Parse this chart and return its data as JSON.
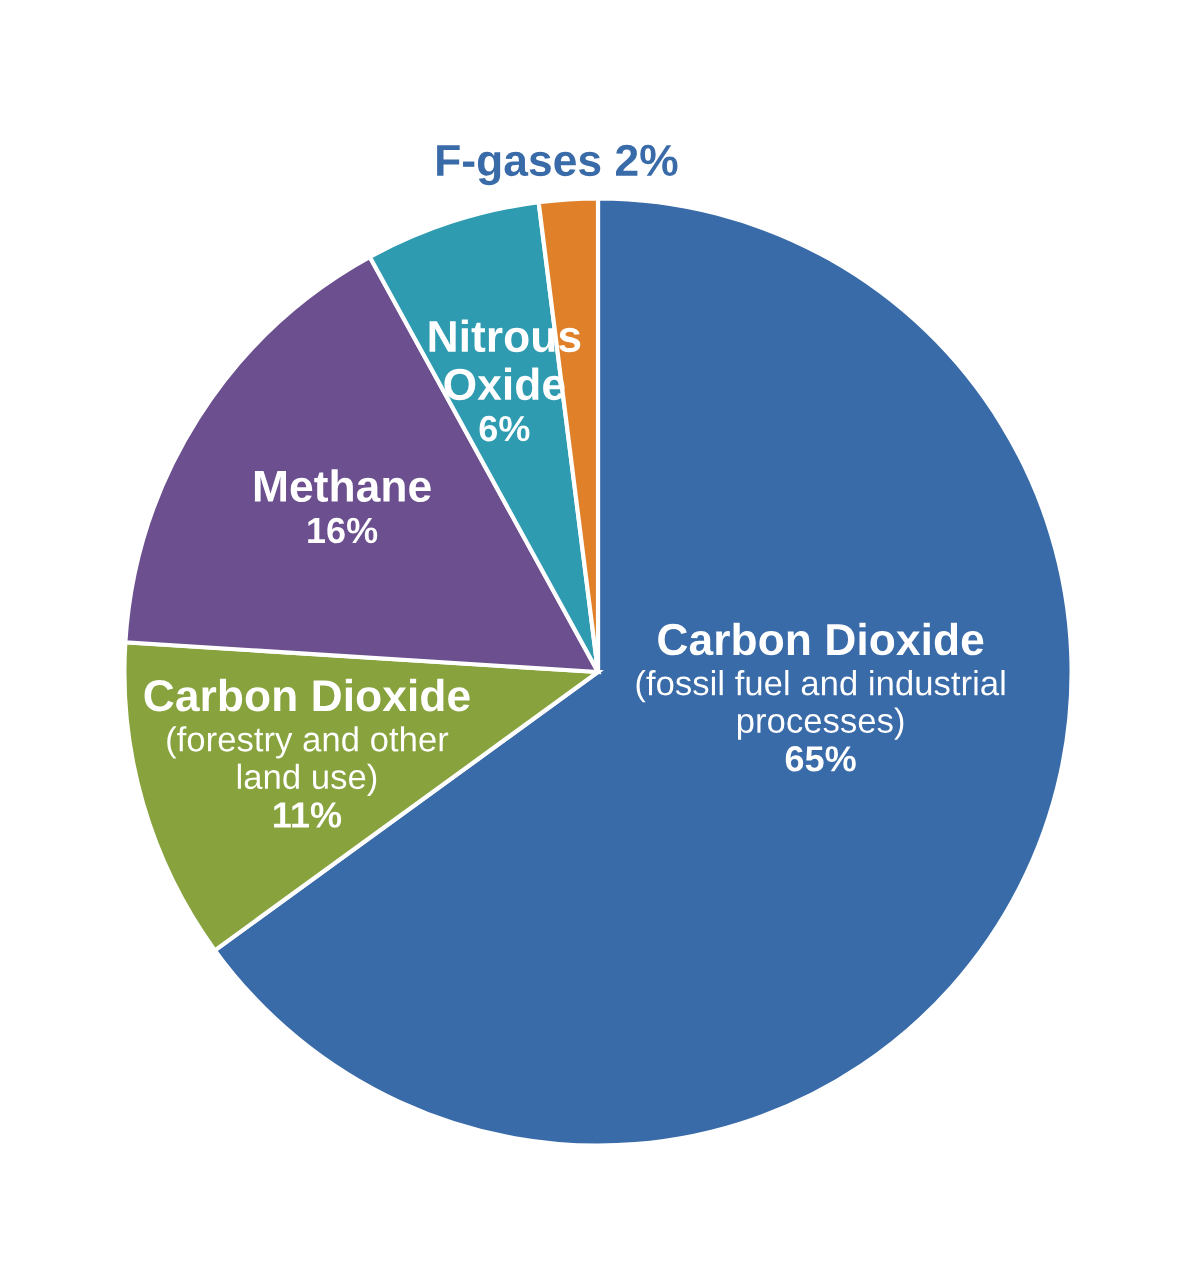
{
  "chart_data": {
    "type": "pie",
    "categories": [
      "Carbon Dioxide\n(fossil fuel and industrial\nprocesses)",
      "Carbon Dioxide\n(forestry and other\nland use)",
      "Methane",
      "Nitrous\nOxide",
      "F-gases"
    ],
    "values": [
      65,
      11,
      16,
      6,
      2
    ],
    "colors": [
      "#3a6ba9",
      "#88a33e",
      "#6b4f8e",
      "#2e9bb1",
      "#e0812a"
    ],
    "value_labels": [
      "65%",
      "11%",
      "16%",
      "6%",
      "2%"
    ]
  }
}
